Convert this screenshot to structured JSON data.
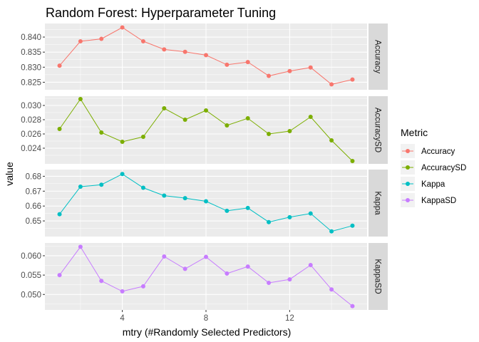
{
  "chart_data": {
    "type": "line",
    "title": "Random Forest: Hyperparameter Tuning",
    "xlabel": "mtry (#Randomly Selected Predictors)",
    "ylabel": "value",
    "x": [
      1,
      2,
      3,
      4,
      5,
      6,
      7,
      8,
      9,
      10,
      11,
      12,
      13,
      14,
      15
    ],
    "xlim": [
      0.3,
      15.7
    ],
    "x_ticks": [
      4,
      8,
      12
    ],
    "legend": {
      "title": "Metric",
      "position": "right"
    },
    "grid": true,
    "panels": [
      {
        "name": "Accuracy",
        "color": "#F8766D",
        "values": [
          0.8305,
          0.8386,
          0.8394,
          0.8432,
          0.8386,
          0.8359,
          0.8351,
          0.834,
          0.8308,
          0.8317,
          0.8271,
          0.8287,
          0.8299,
          0.8243,
          0.8259
        ],
        "ylim": [
          0.8225,
          0.8445
        ],
        "y_ticks": [
          0.825,
          0.83,
          0.835,
          0.84
        ],
        "tick_labels": [
          "0.825",
          "0.830",
          "0.835",
          "0.840"
        ]
      },
      {
        "name": "AccuracySD",
        "color": "#7CAE00",
        "values": [
          0.0267,
          0.0309,
          0.0262,
          0.0249,
          0.0256,
          0.0296,
          0.028,
          0.0293,
          0.0272,
          0.0282,
          0.026,
          0.0264,
          0.0284,
          0.0251,
          0.0222
        ],
        "ylim": [
          0.0218,
          0.0313
        ],
        "y_ticks": [
          0.024,
          0.026,
          0.028,
          0.03
        ],
        "tick_labels": [
          "0.024",
          "0.026",
          "0.028",
          "0.030"
        ]
      },
      {
        "name": "Kappa",
        "color": "#00BFC4",
        "values": [
          0.6545,
          0.673,
          0.6743,
          0.6815,
          0.6723,
          0.667,
          0.6653,
          0.6632,
          0.6568,
          0.6587,
          0.6492,
          0.6525,
          0.655,
          0.643,
          0.6468
        ],
        "ylim": [
          0.6395,
          0.6845
        ],
        "y_ticks": [
          0.65,
          0.66,
          0.67,
          0.68
        ],
        "tick_labels": [
          "0.65",
          "0.66",
          "0.67",
          "0.68"
        ]
      },
      {
        "name": "KappaSD",
        "color": "#C77CFF",
        "values": [
          0.055,
          0.0623,
          0.0535,
          0.0508,
          0.0521,
          0.0598,
          0.0566,
          0.0597,
          0.0554,
          0.0572,
          0.053,
          0.0539,
          0.0576,
          0.0513,
          0.047
        ],
        "ylim": [
          0.046,
          0.0633
        ],
        "y_ticks": [
          0.05,
          0.055,
          0.06
        ],
        "tick_labels": [
          "0.050",
          "0.055",
          "0.060"
        ]
      }
    ]
  }
}
